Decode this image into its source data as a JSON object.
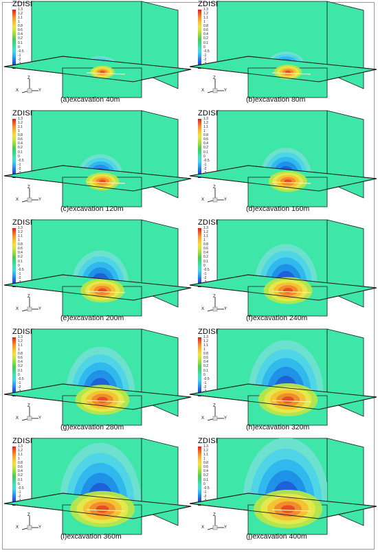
{
  "legend_title": "ZDISP",
  "legend_levels": [
    "1.3",
    "1.2",
    "1.1",
    "1",
    "0.8",
    "0.6",
    "0.4",
    "0.2",
    "0.1",
    "0",
    "-0.5",
    "-1",
    "-2",
    "-3",
    "-4"
  ],
  "axis_labels": {
    "x": "X",
    "y": "Y",
    "z": "Z"
  },
  "colors": {
    "background_field": "#3ee6a8",
    "outline": "#1a1a1a",
    "blue_scale": [
      "#6fe0d0",
      "#4fd4e8",
      "#2fb7ee",
      "#1f8fe6",
      "#1f5fd6",
      "#2a2fc4"
    ],
    "warm_scale": [
      "#b6e64a",
      "#e8e84a",
      "#f6c034",
      "#f08a2c",
      "#e64a22"
    ],
    "legend_gradient": [
      "#e31b1b",
      "#f25d20",
      "#f79a2a",
      "#f7c230",
      "#f2e335",
      "#c7e43a",
      "#8ed943",
      "#4ccc4d",
      "#39d68a",
      "#3ee6b3",
      "#41d8e6",
      "#2eb0ee",
      "#2277e6",
      "#1e47d6",
      "#1a1ac4"
    ]
  },
  "panels": [
    {
      "caption": "(a)excavation 40m"
    },
    {
      "caption": "(b)excavation 80m"
    },
    {
      "caption": "(c)excavation 120m"
    },
    {
      "caption": "(d)excavation 160m"
    },
    {
      "caption": "(e)excavation 200m"
    },
    {
      "caption": "(f)excavation 240m"
    },
    {
      "caption": "(g)excavation 280m"
    },
    {
      "caption": "(h)excavation 320m"
    },
    {
      "caption": "(i)excavation 360m"
    },
    {
      "caption": "(j)excavation 400m"
    }
  ]
}
